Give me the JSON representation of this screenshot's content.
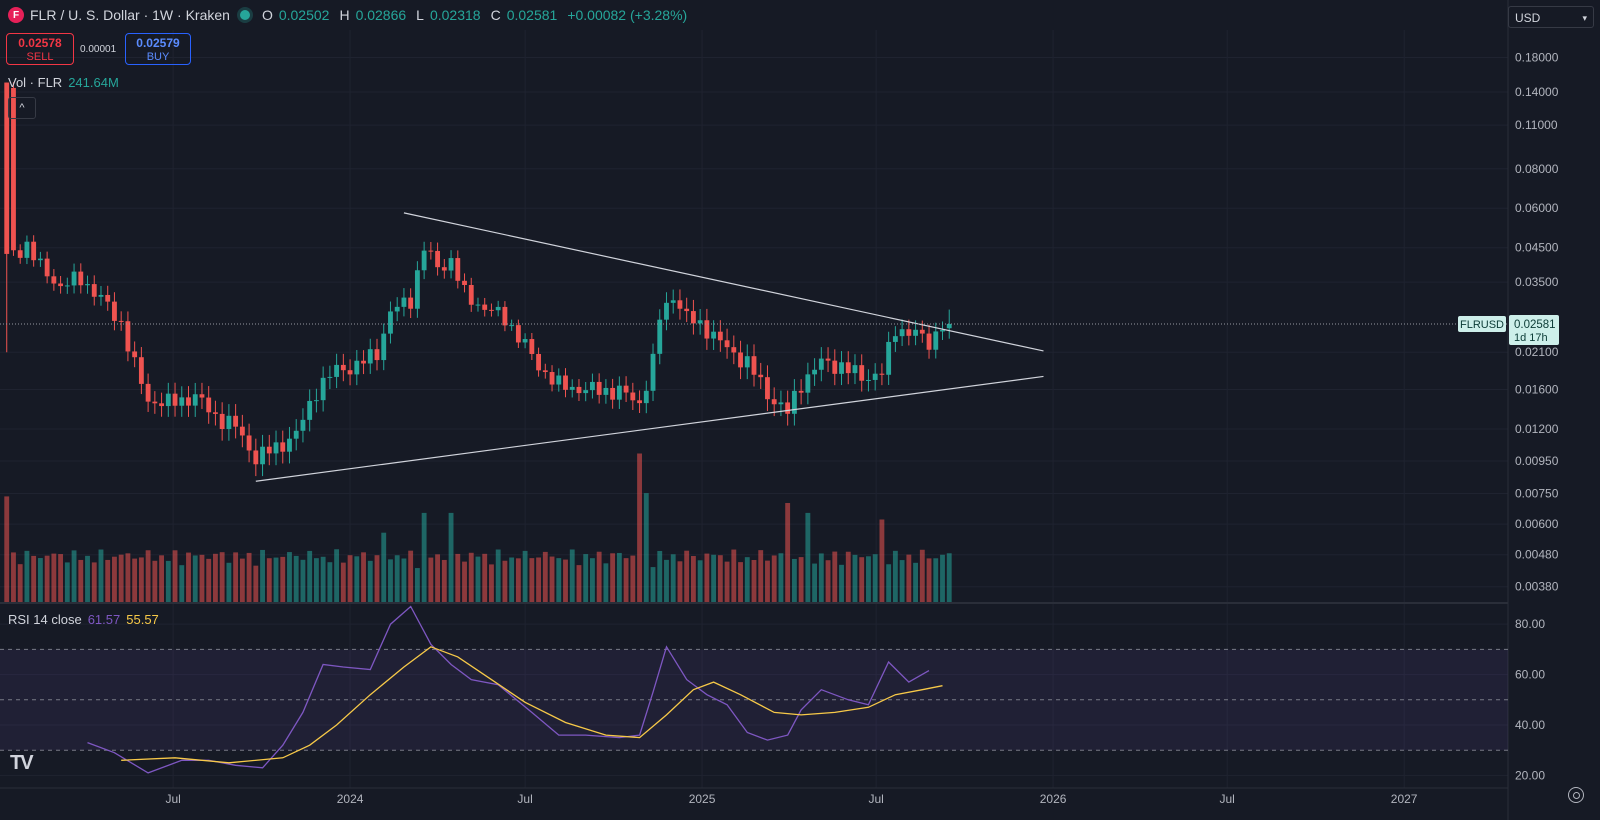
{
  "header": {
    "symbol": "FLR / U. S. Dollar · 1W · Kraken",
    "logo_icon": "flare-logo-icon",
    "o_label": "O",
    "o_value": "0.02502",
    "h_label": "H",
    "h_value": "0.02866",
    "l_label": "L",
    "l_value": "0.02318",
    "c_label": "C",
    "c_value": "0.02581",
    "change": "+0.00082 (+3.28%)"
  },
  "trade": {
    "sell_price": "0.02578",
    "sell_label": "SELL",
    "spread": "0.00001",
    "buy_price": "0.02579",
    "buy_label": "BUY"
  },
  "volume_legend": {
    "label": "Vol · FLR",
    "value": "241.64M"
  },
  "rsi_legend": {
    "label": "RSI 14 close",
    "rsi": "61.57",
    "ma": "55.57"
  },
  "currency_select": "USD",
  "price_tag": {
    "symbol": "FLRUSD",
    "price": "0.02581",
    "countdown": "1d 17h"
  },
  "colors": {
    "up": "#26A69A",
    "down": "#EF5350",
    "rsi": "#7E57C2",
    "rsi_ma": "#F7C948",
    "background": "#161A25"
  },
  "chart_data": [
    {
      "type": "candlestick",
      "title": "FLR / U. S. Dollar · 1W · Kraken",
      "yscale": "log",
      "ylim": [
        0.0034,
        0.22
      ],
      "yticks": [
        0.18,
        0.14,
        0.11,
        0.08,
        0.06,
        0.045,
        0.035,
        0.021,
        0.016,
        0.012,
        0.0095,
        0.0075,
        0.006,
        0.0048,
        0.0038
      ],
      "ytick_labels": [
        "0.18000",
        "0.14000",
        "0.11000",
        "0.08000",
        "0.06000",
        "0.04500",
        "0.03500",
        "0.02100",
        "0.01600",
        "0.01200",
        "0.00950",
        "0.00750",
        "0.00600",
        "0.00480",
        "0.00380"
      ],
      "xlim": [
        "2023-01-02",
        "2027-04-19"
      ],
      "xticks": [
        "2023-07-01",
        "2024-01-01",
        "2024-07-01",
        "2025-01-01",
        "2025-07-01",
        "2026-01-01",
        "2026-07-01",
        "2027-01-01"
      ],
      "xtick_labels": [
        "Jul",
        "2024",
        "Jul",
        "2025",
        "Jul",
        "2026",
        "Jul",
        "2027"
      ],
      "first_week": "2023-01-09",
      "weeks": 141,
      "keypoints": [
        [
          "2023-01-09",
          0.14
        ],
        [
          "2023-01-16",
          0.043
        ],
        [
          "2023-01-30",
          0.046
        ],
        [
          "2023-02-13",
          0.039
        ],
        [
          "2023-03-06",
          0.034
        ],
        [
          "2023-03-27",
          0.036
        ],
        [
          "2023-04-17",
          0.031
        ],
        [
          "2023-05-08",
          0.026
        ],
        [
          "2023-05-22",
          0.019
        ],
        [
          "2023-06-05",
          0.0148
        ],
        [
          "2023-06-26",
          0.0145
        ],
        [
          "2023-07-24",
          0.0152
        ],
        [
          "2023-08-14",
          0.0132
        ],
        [
          "2023-09-04",
          0.0122
        ],
        [
          "2023-09-25",
          0.0097
        ],
        [
          "2023-10-16",
          0.0105
        ],
        [
          "2023-11-06",
          0.0115
        ],
        [
          "2023-11-27",
          0.016
        ],
        [
          "2023-12-18",
          0.0185
        ],
        [
          "2024-01-08",
          0.019
        ],
        [
          "2024-01-29",
          0.021
        ],
        [
          "2024-02-12",
          0.028
        ],
        [
          "2024-03-04",
          0.031
        ],
        [
          "2024-03-18",
          0.045
        ],
        [
          "2024-04-01",
          0.039
        ],
        [
          "2024-04-15",
          0.041
        ],
        [
          "2024-04-29",
          0.032
        ],
        [
          "2024-05-20",
          0.029
        ],
        [
          "2024-06-10",
          0.027
        ],
        [
          "2024-07-01",
          0.022
        ],
        [
          "2024-07-15",
          0.019
        ],
        [
          "2024-08-05",
          0.0165
        ],
        [
          "2024-09-02",
          0.016
        ],
        [
          "2024-10-07",
          0.0158
        ],
        [
          "2024-10-28",
          0.0145
        ],
        [
          "2024-11-11",
          0.0195
        ],
        [
          "2024-11-18",
          0.027
        ],
        [
          "2024-12-02",
          0.032
        ],
        [
          "2024-12-16",
          0.027
        ],
        [
          "2025-01-06",
          0.025
        ],
        [
          "2025-01-27",
          0.0215
        ],
        [
          "2025-02-17",
          0.0195
        ],
        [
          "2025-03-10",
          0.0155
        ],
        [
          "2025-03-31",
          0.0135
        ],
        [
          "2025-04-14",
          0.0168
        ],
        [
          "2025-05-05",
          0.0195
        ],
        [
          "2025-05-26",
          0.019
        ],
        [
          "2025-06-16",
          0.0175
        ],
        [
          "2025-07-07",
          0.018
        ],
        [
          "2025-07-21",
          0.025
        ],
        [
          "2025-08-11",
          0.024
        ],
        [
          "2025-08-25",
          0.0225
        ],
        [
          "2025-09-08",
          0.0258
        ]
      ],
      "last": {
        "open": 0.02502,
        "high": 0.02866,
        "low": 0.02318,
        "close": 0.02581
      },
      "trendlines": [
        {
          "name": "upper",
          "from": [
            "2024-02-26",
            0.058
          ],
          "to": [
            "2025-12-22",
            0.0212
          ]
        },
        {
          "name": "lower",
          "from": [
            "2023-09-25",
            0.0082
          ],
          "to": [
            "2025-12-22",
            0.0176
          ]
        }
      ]
    },
    {
      "type": "bar",
      "title": "Vol · FLR",
      "last_value": "241.64M",
      "spikes": [
        [
          "2023-01-09",
          3.2
        ],
        [
          "2024-02-05",
          2.1
        ],
        [
          "2024-03-18",
          2.7
        ],
        [
          "2024-04-15",
          2.7
        ],
        [
          "2024-10-28",
          4.5
        ],
        [
          "2024-11-04",
          3.3
        ],
        [
          "2025-03-31",
          3.0
        ],
        [
          "2025-04-21",
          2.7
        ],
        [
          "2025-07-07",
          2.5
        ]
      ]
    },
    {
      "type": "line",
      "title": "RSI 14 close",
      "ylim": [
        15,
        88
      ],
      "yticks": [
        80,
        60,
        40,
        20
      ],
      "ytick_labels": [
        "80.00",
        "60.00",
        "40.00",
        "20.00"
      ],
      "bands": {
        "upper": 70,
        "middle": 50,
        "lower": 30
      },
      "series": [
        {
          "name": "RSI",
          "last": 61.57,
          "keypoints": [
            [
              "2023-04-03",
              33
            ],
            [
              "2023-05-01",
              29
            ],
            [
              "2023-06-05",
              21
            ],
            [
              "2023-07-10",
              26
            ],
            [
              "2023-08-07",
              26
            ],
            [
              "2023-09-04",
              24
            ],
            [
              "2023-10-02",
              23
            ],
            [
              "2023-10-23",
              32
            ],
            [
              "2023-11-13",
              45
            ],
            [
              "2023-12-04",
              64
            ],
            [
              "2023-12-25",
              63
            ],
            [
              "2024-01-22",
              62
            ],
            [
              "2024-02-12",
              80
            ],
            [
              "2024-03-04",
              87
            ],
            [
              "2024-03-25",
              72
            ],
            [
              "2024-04-15",
              64
            ],
            [
              "2024-05-06",
              58
            ],
            [
              "2024-06-03",
              56
            ],
            [
              "2024-07-08",
              45
            ],
            [
              "2024-08-05",
              36
            ],
            [
              "2024-09-02",
              36
            ],
            [
              "2024-10-07",
              35
            ],
            [
              "2024-10-28",
              36
            ],
            [
              "2024-11-11",
              53
            ],
            [
              "2024-11-25",
              71
            ],
            [
              "2024-12-16",
              58
            ],
            [
              "2025-01-06",
              52
            ],
            [
              "2025-01-27",
              48
            ],
            [
              "2025-02-17",
              37
            ],
            [
              "2025-03-10",
              34
            ],
            [
              "2025-03-31",
              36
            ],
            [
              "2025-04-14",
              46
            ],
            [
              "2025-05-05",
              54
            ],
            [
              "2025-06-02",
              50
            ],
            [
              "2025-06-23",
              48
            ],
            [
              "2025-07-14",
              65
            ],
            [
              "2025-08-04",
              57
            ],
            [
              "2025-08-25",
              61.57
            ]
          ]
        },
        {
          "name": "RSI-based MA",
          "last": 55.57,
          "keypoints": [
            [
              "2023-05-08",
              26
            ],
            [
              "2023-07-03",
              27
            ],
            [
              "2023-08-28",
              25
            ],
            [
              "2023-10-23",
              27
            ],
            [
              "2023-11-20",
              32
            ],
            [
              "2023-12-18",
              40
            ],
            [
              "2024-01-22",
              52
            ],
            [
              "2024-02-26",
              63
            ],
            [
              "2024-03-25",
              71
            ],
            [
              "2024-04-22",
              67
            ],
            [
              "2024-05-27",
              58
            ],
            [
              "2024-07-01",
              49
            ],
            [
              "2024-08-12",
              41
            ],
            [
              "2024-09-23",
              36
            ],
            [
              "2024-10-28",
              35
            ],
            [
              "2024-11-25",
              44
            ],
            [
              "2024-12-23",
              54
            ],
            [
              "2025-01-13",
              57
            ],
            [
              "2025-02-10",
              52
            ],
            [
              "2025-03-17",
              45
            ],
            [
              "2025-04-14",
              44
            ],
            [
              "2025-05-19",
              45
            ],
            [
              "2025-06-23",
              47
            ],
            [
              "2025-07-21",
              52
            ],
            [
              "2025-08-18",
              54
            ],
            [
              "2025-09-08",
              55.57
            ]
          ]
        }
      ]
    }
  ]
}
